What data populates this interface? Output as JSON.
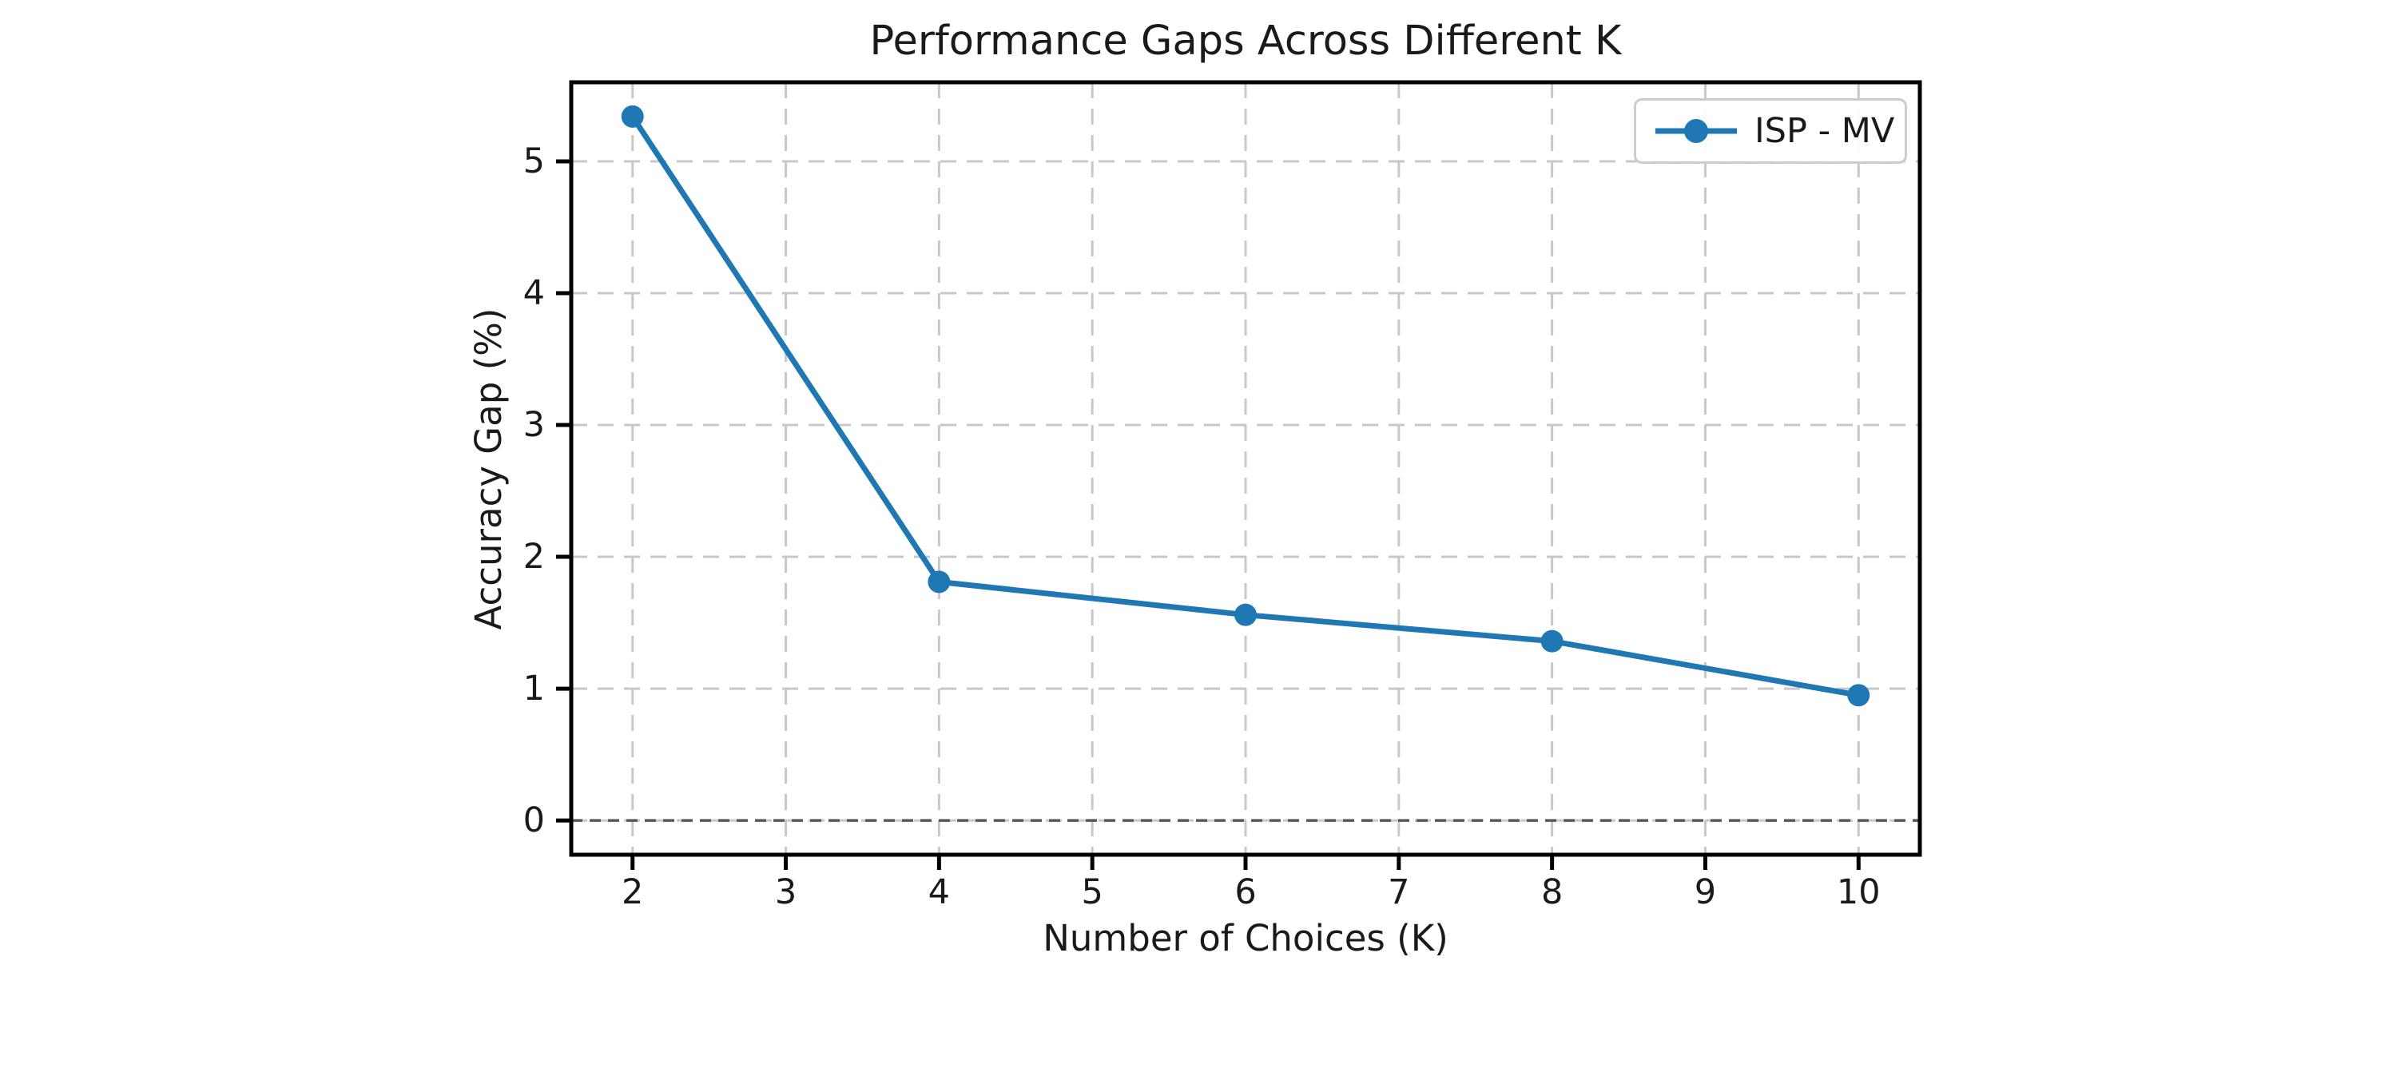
{
  "chart_data": {
    "type": "line",
    "title": "Performance Gaps Across Different K",
    "xlabel": "Number of Choices (K)",
    "ylabel": "Accuracy Gap (%)",
    "x": [
      2,
      4,
      6,
      8,
      10
    ],
    "series": [
      {
        "name": "ISP - MV",
        "values": [
          5.34,
          1.81,
          1.56,
          1.36,
          0.95
        ],
        "color": "#1f77b4",
        "marker": "circle",
        "linestyle": "solid"
      }
    ],
    "xticks": [
      "2",
      "3",
      "4",
      "5",
      "6",
      "7",
      "8",
      "9",
      "10"
    ],
    "xtick_values": [
      2,
      3,
      4,
      5,
      6,
      7,
      8,
      9,
      10
    ],
    "yticks": [
      "0",
      "1",
      "2",
      "3",
      "4",
      "5"
    ],
    "ytick_values": [
      0,
      1,
      2,
      3,
      4,
      5
    ],
    "xlim": [
      1.6,
      10.4
    ],
    "ylim": [
      -0.26,
      5.6
    ],
    "grid": true,
    "grid_linestyle": "dashed",
    "zero_line_y": 0,
    "legend": {
      "label": "ISP - MV",
      "position": "upper right"
    },
    "colors": {
      "series": "#1f77b4",
      "grid": "#c8c8c8",
      "zero_line": "#595959",
      "spines": "#000000",
      "text": "#1a1a1a",
      "legend_border": "#cccccc",
      "background": "#ffffff"
    }
  }
}
